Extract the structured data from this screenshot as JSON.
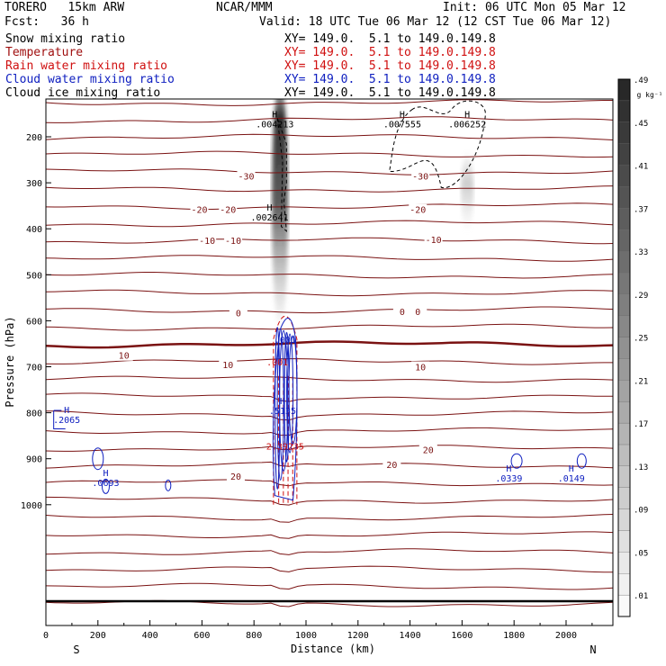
{
  "header": {
    "model": "TORERO   15km ARW",
    "center": "NCAR/MMM",
    "init": "Init: 06 UTC Mon 05 Mar 12",
    "fcst": "Fcst:   36 h",
    "valid": "Valid: 18 UTC Tue 06 Mar 12 (12 CST Tue 06 Mar 12)"
  },
  "fields": [
    {
      "name": "Snow mixing ratio",
      "xy": "XY= 149.0.  5.1 to 149.0.149.8",
      "color": "#000000"
    },
    {
      "name": "Temperature",
      "xy": "XY= 149.0.  5.1 to 149.0.149.8",
      "color": "#a01010"
    },
    {
      "name": "Rain water mixing ratio",
      "xy": "XY= 149.0.  5.1 to 149.0.149.8",
      "color": "#d01010"
    },
    {
      "name": "Cloud water mixing ratio",
      "xy": "XY= 149.0.  5.1 to 149.0.149.8",
      "color": "#1020c0"
    },
    {
      "name": "Cloud ice mixing ratio",
      "xy": "XY= 149.0.  5.1 to 149.0.149.8",
      "color": "#000000"
    }
  ],
  "chart_data": {
    "type": "heatmap",
    "xlabel": "Distance (km)",
    "ylabel": "Pressure (hPa)",
    "xlim": [
      0,
      2180
    ],
    "ylim": [
      1050,
      110
    ],
    "x_ticks": [
      0,
      200,
      400,
      600,
      800,
      1000,
      1200,
      1400,
      1600,
      1800,
      2000
    ],
    "y_ticks": [
      200,
      300,
      400,
      500,
      600,
      700,
      800,
      900,
      1000
    ],
    "x_end_labels": {
      "left": "S",
      "right": "N"
    },
    "colorbar": {
      "unit": "g kg⁻¹",
      "ticks": [
        ".01",
        ".05",
        ".09",
        ".13",
        ".17",
        ".21",
        ".25",
        ".29",
        ".33",
        ".37",
        ".41",
        ".45",
        ".49"
      ]
    },
    "temperature_labels": [
      {
        "x": 300,
        "p": 675,
        "text": "10"
      },
      {
        "x": 700,
        "p": 695,
        "text": "10"
      },
      {
        "x": 1440,
        "p": 700,
        "text": "10"
      },
      {
        "x": 740,
        "p": 583,
        "text": "0"
      },
      {
        "x": 1370,
        "p": 580,
        "text": "0"
      },
      {
        "x": 1430,
        "p": 580,
        "text": "0"
      },
      {
        "x": 620,
        "p": 425,
        "text": "-10"
      },
      {
        "x": 720,
        "p": 425,
        "text": "-10"
      },
      {
        "x": 1490,
        "p": 423,
        "text": "-10"
      },
      {
        "x": 590,
        "p": 358,
        "text": "-20"
      },
      {
        "x": 700,
        "p": 358,
        "text": "-20"
      },
      {
        "x": 1430,
        "p": 358,
        "text": "-20"
      },
      {
        "x": 770,
        "p": 285,
        "text": "-30"
      },
      {
        "x": 1440,
        "p": 285,
        "text": "-30"
      },
      {
        "x": 730,
        "p": 938,
        "text": "20"
      },
      {
        "x": 1330,
        "p": 912,
        "text": "20"
      },
      {
        "x": 1470,
        "p": 880,
        "text": "20"
      }
    ],
    "value_labels": [
      {
        "x": 880,
        "p": 168,
        "title": "H",
        "text": ".004213",
        "color": "#000000"
      },
      {
        "x": 1370,
        "p": 168,
        "title": "H",
        "text": ".007555",
        "color": "#000000"
      },
      {
        "x": 1620,
        "p": 168,
        "title": "H",
        "text": ".006252",
        "color": "#000000"
      },
      {
        "x": 860,
        "p": 370,
        "title": "H",
        "text": ".002641",
        "color": "#000000"
      },
      {
        "x": 920,
        "p": 636,
        "title": "",
        "text": ".001",
        "color": "#1020c0"
      },
      {
        "x": 910,
        "p": 791,
        "title": "H",
        "text": ".5135",
        "color": "#1020c0"
      },
      {
        "x": 80,
        "p": 811,
        "title": "H",
        "text": ".2065",
        "color": "#1020c0"
      },
      {
        "x": 230,
        "p": 948,
        "title": "H",
        "text": ".0693",
        "color": "#1020c0"
      },
      {
        "x": 1780,
        "p": 938,
        "title": "H",
        "text": ".0339",
        "color": "#1020c0"
      },
      {
        "x": 2020,
        "p": 938,
        "title": "H",
        "text": ".0149",
        "color": "#1020c0"
      },
      {
        "x": 920,
        "p": 868,
        "title": "",
        "text": "2.39235",
        "color": "#d01010"
      },
      {
        "x": 890,
        "p": 685,
        "title": "",
        "text": ".001",
        "color": "#d01010"
      }
    ]
  }
}
